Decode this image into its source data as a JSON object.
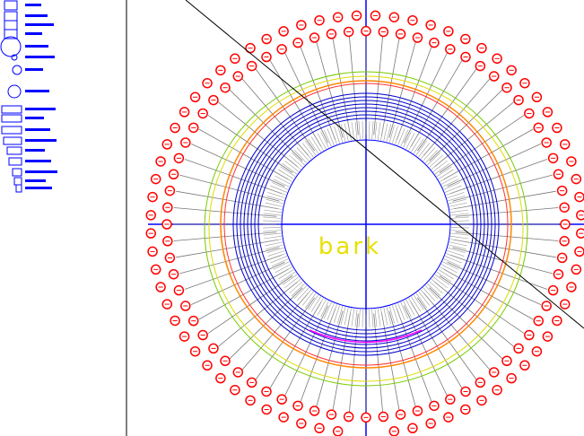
{
  "drawing": {
    "label": "bark"
  }
}
